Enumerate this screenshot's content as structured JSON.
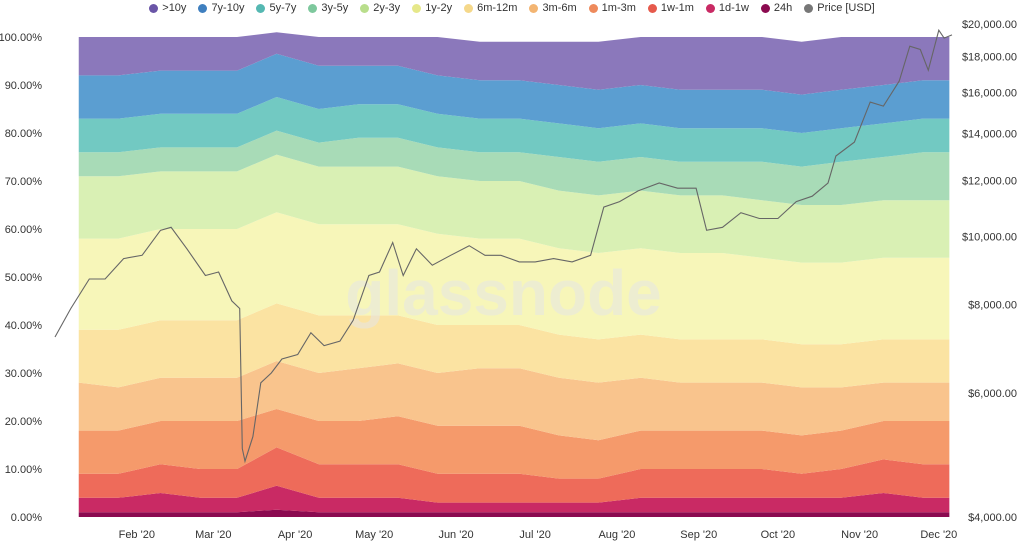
{
  "chart_data": {
    "type": "area",
    "watermark": "glassnode",
    "x_labels": [
      "Feb '20",
      "Mar '20",
      "Apr '20",
      "May '20",
      "Jun '20",
      "Jul '20",
      "Aug '20",
      "Sep '20",
      "Oct '20",
      "Nov '20",
      "Dec '20"
    ],
    "y_left": {
      "ticks": [
        "0.00%",
        "10.00%",
        "20.00%",
        "30.00%",
        "40.00%",
        "50.00%",
        "60.00%",
        "70.00%",
        "80.00%",
        "90.00%",
        "100.00%"
      ],
      "min": 0,
      "max": 100
    },
    "y_right": {
      "scale": "log",
      "ticks": [
        "$4,000.00",
        "$6,000.00",
        "$8,000.00",
        "$10,000.00",
        "$12,000.00",
        "$14,000.00",
        "$16,000.00",
        "$18,000.00",
        "$20,000.00"
      ],
      "min": 4000,
      "max": 20000
    },
    "x": [
      "2020-01-10",
      "2020-01-25",
      "2020-02-10",
      "2020-02-25",
      "2020-03-10",
      "2020-03-25",
      "2020-04-10",
      "2020-04-25",
      "2020-05-10",
      "2020-05-25",
      "2020-06-10",
      "2020-06-25",
      "2020-07-10",
      "2020-07-25",
      "2020-08-10",
      "2020-08-25",
      "2020-09-10",
      "2020-09-25",
      "2020-10-10",
      "2020-10-25",
      "2020-11-10",
      "2020-11-25",
      "2020-12-05"
    ],
    "series": [
      {
        "name": "24h",
        "color": "#8b0a50",
        "values": [
          1,
          1,
          1,
          1,
          1,
          1.5,
          1,
          1,
          1,
          1,
          1,
          1,
          1,
          1,
          1,
          1,
          1,
          1,
          1,
          1,
          1,
          1,
          1
        ]
      },
      {
        "name": "1d-1w",
        "color": "#c92a64",
        "values": [
          3,
          3,
          4,
          3,
          3,
          5,
          3,
          3,
          3,
          2,
          2,
          2,
          2,
          2,
          3,
          3,
          3,
          3,
          3,
          3,
          4,
          3,
          3
        ]
      },
      {
        "name": "1w-1m",
        "color": "#ee6b5a",
        "values": [
          5,
          5,
          6,
          6,
          6,
          8,
          7,
          7,
          7,
          6,
          6,
          6,
          5,
          5,
          6,
          6,
          6,
          6,
          5,
          6,
          7,
          7,
          7
        ]
      },
      {
        "name": "1m-3m",
        "color": "#f59a6b",
        "values": [
          9,
          9,
          9,
          10,
          10,
          8,
          9,
          9,
          10,
          10,
          10,
          10,
          9,
          8,
          8,
          8,
          8,
          8,
          8,
          8,
          8,
          9,
          9
        ]
      },
      {
        "name": "3m-6m",
        "color": "#f9c48d",
        "values": [
          10,
          9,
          9,
          9,
          9,
          10,
          10,
          11,
          11,
          11,
          12,
          12,
          12,
          12,
          11,
          10,
          10,
          10,
          10,
          9,
          8,
          8,
          8
        ]
      },
      {
        "name": "6m-12m",
        "color": "#fbe3a2",
        "values": [
          11,
          12,
          12,
          12,
          12,
          12,
          12,
          11,
          10,
          10,
          9,
          9,
          9,
          9,
          9,
          9,
          9,
          9,
          9,
          9,
          9,
          9,
          9
        ]
      },
      {
        "name": "1y-2y",
        "color": "#f7f6b9",
        "values": [
          19,
          19,
          19,
          19,
          19,
          19,
          19,
          19,
          19,
          19,
          18,
          18,
          18,
          18,
          18,
          18,
          18,
          17,
          17,
          17,
          17,
          17,
          17
        ]
      },
      {
        "name": "2y-3y",
        "color": "#d9f0b4",
        "values": [
          13,
          13,
          12,
          12,
          12,
          12,
          12,
          12,
          12,
          12,
          12,
          12,
          12,
          12,
          12,
          12,
          12,
          12,
          12,
          12,
          12,
          12,
          12
        ]
      },
      {
        "name": "3y-5y",
        "color": "#a8dbb7",
        "values": [
          5,
          5,
          5,
          5,
          5,
          5,
          5,
          6,
          6,
          6,
          6,
          6,
          7,
          7,
          7,
          7,
          7,
          8,
          8,
          9,
          9,
          10,
          10
        ]
      },
      {
        "name": "5y-7y",
        "color": "#72c9c2",
        "values": [
          7,
          7,
          7,
          7,
          7,
          7,
          7,
          7,
          7,
          7,
          7,
          7,
          7,
          7,
          7,
          7,
          7,
          7,
          7,
          7,
          7,
          7,
          7
        ]
      },
      {
        "name": "7y-10y",
        "color": "#5b9ed1",
        "values": [
          9,
          9,
          9,
          9,
          9,
          9,
          9,
          8,
          8,
          8,
          8,
          8,
          8,
          8,
          8,
          8,
          8,
          8,
          8,
          8,
          8,
          8,
          8
        ]
      },
      {
        "name": ">10y",
        "color": "#8b78bb",
        "values": [
          8,
          8,
          7,
          7,
          7,
          4.5,
          6,
          6,
          6,
          8,
          8,
          8,
          9,
          10,
          10,
          11,
          11,
          11,
          11,
          11,
          10,
          9,
          9
        ]
      }
    ],
    "price": {
      "name": "Price [USD]",
      "color": "#666666",
      "dates": [
        "2020-01-01",
        "2020-01-07",
        "2020-01-14",
        "2020-01-20",
        "2020-01-27",
        "2020-02-03",
        "2020-02-10",
        "2020-02-14",
        "2020-02-20",
        "2020-02-27",
        "2020-03-03",
        "2020-03-08",
        "2020-03-11",
        "2020-03-12",
        "2020-03-13",
        "2020-03-16",
        "2020-03-19",
        "2020-03-23",
        "2020-03-27",
        "2020-04-02",
        "2020-04-07",
        "2020-04-12",
        "2020-04-18",
        "2020-04-23",
        "2020-04-29",
        "2020-05-03",
        "2020-05-08",
        "2020-05-12",
        "2020-05-17",
        "2020-05-23",
        "2020-05-30",
        "2020-06-06",
        "2020-06-12",
        "2020-06-18",
        "2020-06-25",
        "2020-07-01",
        "2020-07-08",
        "2020-07-15",
        "2020-07-22",
        "2020-07-27",
        "2020-08-02",
        "2020-08-09",
        "2020-08-17",
        "2020-08-24",
        "2020-08-31",
        "2020-09-04",
        "2020-09-10",
        "2020-09-17",
        "2020-09-24",
        "2020-10-01",
        "2020-10-08",
        "2020-10-14",
        "2020-10-20",
        "2020-10-23",
        "2020-10-30",
        "2020-11-05",
        "2020-11-10",
        "2020-11-16",
        "2020-11-20",
        "2020-11-24",
        "2020-11-27",
        "2020-12-01",
        "2020-12-03",
        "2020-12-06"
      ],
      "values": [
        7200,
        7900,
        8700,
        8700,
        9300,
        9400,
        10200,
        10300,
        9600,
        8800,
        8900,
        8100,
        7900,
        5000,
        4800,
        5200,
        6200,
        6400,
        6700,
        6800,
        7300,
        7000,
        7100,
        7600,
        8800,
        8900,
        9800,
        8800,
        9600,
        9100,
        9400,
        9700,
        9400,
        9400,
        9200,
        9200,
        9300,
        9200,
        9400,
        11000,
        11200,
        11600,
        11900,
        11700,
        11700,
        10200,
        10300,
        10800,
        10600,
        10600,
        11200,
        11400,
        11900,
        13000,
        13600,
        15500,
        15300,
        16600,
        18600,
        18400,
        17200,
        19600,
        19100,
        19300
      ]
    }
  },
  "legend": [
    {
      "label": ">10y",
      "color": "#6a55a7"
    },
    {
      "label": "7y-10y",
      "color": "#3f7fbf"
    },
    {
      "label": "5y-7y",
      "color": "#55b8b2"
    },
    {
      "label": "3y-5y",
      "color": "#7ec89d"
    },
    {
      "label": "2y-3y",
      "color": "#b9de8c"
    },
    {
      "label": "1y-2y",
      "color": "#e6e88a"
    },
    {
      "label": "6m-12m",
      "color": "#f5d88a"
    },
    {
      "label": "3m-6m",
      "color": "#f3b572"
    },
    {
      "label": "1m-3m",
      "color": "#ee8a5c"
    },
    {
      "label": "1w-1m",
      "color": "#e65a4c"
    },
    {
      "label": "1d-1w",
      "color": "#c92a64"
    },
    {
      "label": "24h",
      "color": "#8b0a50"
    },
    {
      "label": "Price [USD]",
      "color": "#777777"
    }
  ]
}
